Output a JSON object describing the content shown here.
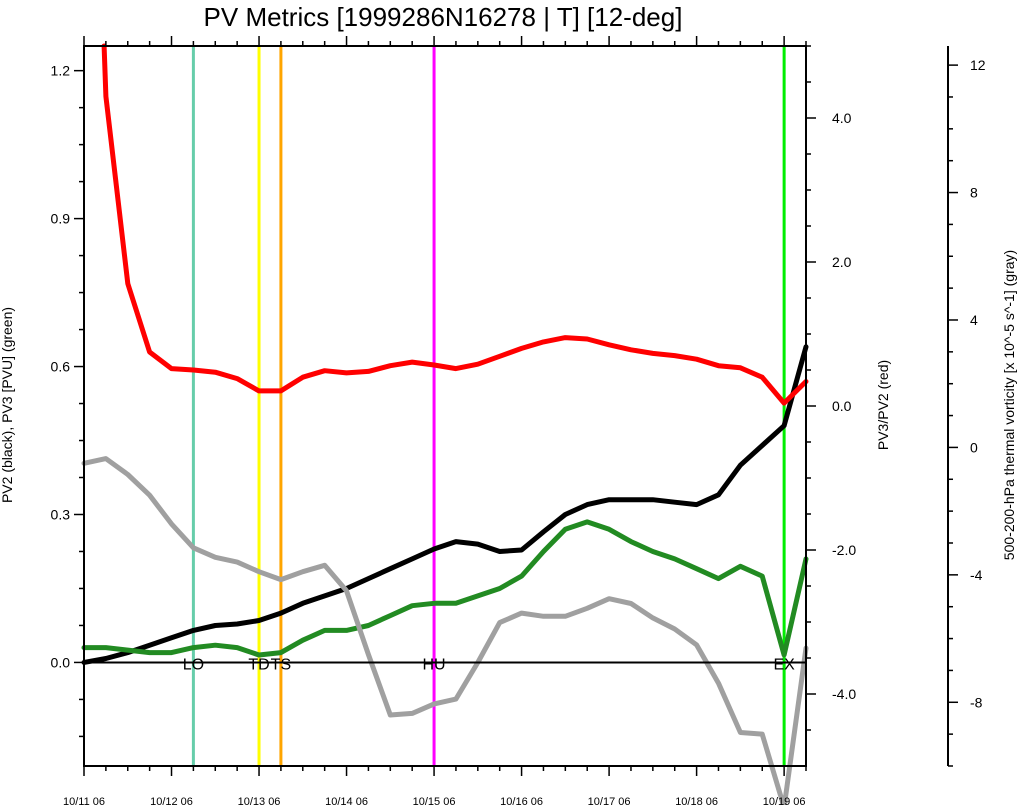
{
  "chart_data": {
    "type": "line",
    "title": "PV Metrics [1999286N16278 | T] [12-deg]",
    "xlabel": "",
    "x_tick_labels": [
      "10/11 06",
      "10/12 06",
      "10/13 06",
      "10/14 06",
      "10/15 06",
      "10/16 06",
      "10/17 06",
      "10/18 06",
      "10/19 06"
    ],
    "x_tick_hours": [
      0,
      24,
      48,
      72,
      96,
      120,
      144,
      168,
      192
    ],
    "xlim": [
      0,
      198
    ],
    "grid": false,
    "legend": "none",
    "axes": {
      "left": {
        "label": "PV2 (black), PV3 [PVU] (green)",
        "range": [
          -0.21,
          1.25
        ],
        "ticks": [
          0.0,
          0.3,
          0.6,
          0.9,
          1.2
        ],
        "tick_labels": [
          "0.0",
          "0.3",
          "0.6",
          "0.9",
          "1.2"
        ]
      },
      "right_inner": {
        "label": "PV3/PV2 (red)",
        "range": [
          -5.0,
          5.0
        ],
        "ticks": [
          -4,
          -2,
          0,
          2,
          4
        ],
        "tick_labels": [
          "-4.0",
          "-2.0",
          "0.0",
          "2.0",
          "4.0"
        ]
      },
      "right_outer": {
        "label": "500-200-hPa thermal vorticity [x 10^-5 s^-1] (gray)",
        "range": [
          -10,
          12.6
        ],
        "ticks": [
          -8,
          -4,
          0,
          4,
          8,
          12
        ],
        "tick_labels": [
          "-8",
          "-4",
          "0",
          "4",
          "8",
          "12"
        ]
      }
    },
    "series": [
      {
        "name": "PV2",
        "color": "#000000",
        "axis": "left",
        "x": [
          0,
          6,
          12,
          18,
          24,
          30,
          36,
          42,
          48,
          54,
          60,
          66,
          72,
          78,
          84,
          90,
          96,
          102,
          108,
          114,
          120,
          126,
          132,
          138,
          144,
          150,
          156,
          162,
          168,
          174,
          180,
          186,
          192,
          198
        ],
        "values": [
          0.0,
          0.008,
          0.02,
          0.035,
          0.05,
          0.065,
          0.075,
          0.078,
          0.085,
          0.1,
          0.12,
          0.135,
          0.15,
          0.17,
          0.19,
          0.21,
          0.23,
          0.245,
          0.24,
          0.225,
          0.228,
          0.265,
          0.3,
          0.32,
          0.33,
          0.33,
          0.33,
          0.325,
          0.32,
          0.34,
          0.4,
          0.44,
          0.48,
          0.64
        ]
      },
      {
        "name": "PV3",
        "color": "#228B22",
        "axis": "left",
        "x": [
          0,
          6,
          12,
          18,
          24,
          30,
          36,
          42,
          48,
          54,
          60,
          66,
          72,
          78,
          84,
          90,
          96,
          102,
          108,
          114,
          120,
          126,
          132,
          138,
          144,
          150,
          156,
          162,
          168,
          174,
          180,
          186,
          192,
          198
        ],
        "values": [
          0.03,
          0.03,
          0.025,
          0.02,
          0.02,
          0.03,
          0.035,
          0.03,
          0.015,
          0.02,
          0.045,
          0.065,
          0.065,
          0.075,
          0.095,
          0.115,
          0.12,
          0.12,
          0.135,
          0.15,
          0.175,
          0.225,
          0.27,
          0.285,
          0.27,
          0.245,
          0.225,
          0.21,
          0.19,
          0.17,
          0.195,
          0.175,
          0.015,
          0.21
        ]
      },
      {
        "name": "PV3/PV2",
        "color": "#ff0000",
        "axis": "right_inner",
        "x": [
          5.5,
          6,
          12,
          18,
          24,
          30,
          36,
          42,
          48,
          54,
          60,
          66,
          72,
          78,
          84,
          90,
          96,
          102,
          108,
          114,
          120,
          126,
          132,
          138,
          144,
          150,
          156,
          162,
          168,
          174,
          180,
          186,
          192,
          198
        ],
        "values": [
          5.0,
          4.3,
          1.7,
          0.75,
          0.52,
          0.5,
          0.47,
          0.38,
          0.21,
          0.21,
          0.4,
          0.49,
          0.46,
          0.48,
          0.56,
          0.61,
          0.57,
          0.52,
          0.58,
          0.69,
          0.8,
          0.89,
          0.95,
          0.93,
          0.85,
          0.78,
          0.73,
          0.7,
          0.65,
          0.56,
          0.53,
          0.4,
          0.04,
          0.34
        ]
      },
      {
        "name": "500-200-hPa thermal vorticity",
        "color": "#a0a0a0",
        "axis": "right_outer",
        "x": [
          0,
          6,
          12,
          18,
          24,
          30,
          36,
          42,
          48,
          54,
          60,
          66,
          72,
          78,
          84,
          90,
          96,
          102,
          108,
          114,
          120,
          126,
          132,
          138,
          144,
          150,
          156,
          162,
          168,
          174,
          180,
          186,
          192,
          198
        ],
        "values": [
          -0.5,
          -0.35,
          -0.85,
          -1.5,
          -2.4,
          -3.15,
          -3.45,
          -3.6,
          -3.9,
          -4.15,
          -3.9,
          -3.7,
          -4.5,
          -6.5,
          -8.4,
          -8.35,
          -8.05,
          -7.9,
          -6.75,
          -5.5,
          -5.2,
          -5.3,
          -5.3,
          -5.05,
          -4.75,
          -4.9,
          -5.35,
          -5.7,
          -6.2,
          -7.4,
          -8.95,
          -9.0,
          -11.3,
          -6.3
        ]
      }
    ],
    "events": [
      {
        "label": "LO",
        "hour": 30,
        "color": "#66cdaa"
      },
      {
        "label": "TD",
        "hour": 48,
        "color": "#ffff00"
      },
      {
        "label": "TS",
        "hour": 54,
        "color": "#ffa500"
      },
      {
        "label": "HU",
        "hour": 96,
        "color": "#ff00ff"
      },
      {
        "label": "EX",
        "hour": 192,
        "color": "#00ee00"
      }
    ]
  }
}
